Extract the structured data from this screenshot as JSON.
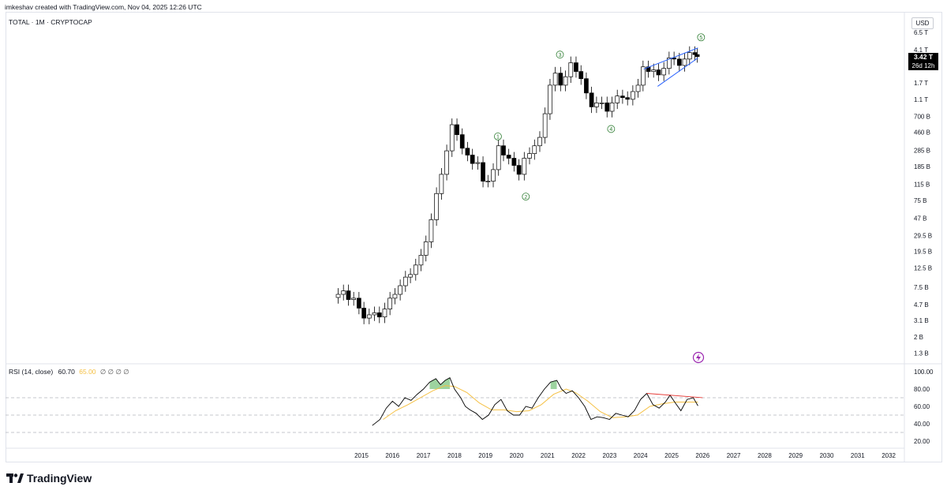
{
  "header": {
    "attribution": "imkeshav created with TradingView.com, Nov 04, 2025 12:26 UTC"
  },
  "symbol_label": "TOTAL · 1M · CRYPTOCAP",
  "currency": "USD",
  "last_price": {
    "value": "3.42 T",
    "countdown": "26d 12h"
  },
  "rsi_legend": {
    "name": "RSI (14, close)",
    "value": "60.70",
    "ma_value": "65.00",
    "extras": "∅ ∅ ∅ ∅"
  },
  "brand": {
    "name": "TradingView"
  },
  "chart_data": [
    {
      "type": "candlestick",
      "title": "TOTAL · 1M · CRYPTOCAP",
      "y_scale": "log",
      "y_tick_labels": [
        "6.5T",
        "4.1T",
        "2.7T",
        "1.7T",
        "1.1T",
        "700B",
        "460B",
        "285B",
        "185B",
        "115B",
        "75B",
        "47B",
        "29.5B",
        "19.5B",
        "12.5B",
        "7.5B",
        "4.7B",
        "3.1B",
        "2B",
        "1.3B"
      ],
      "y_tick_values": [
        6500000000000.0,
        4100000000000.0,
        2700000000000.0,
        1700000000000.0,
        1100000000000.0,
        700000000000.0,
        460000000000.0,
        285000000000.0,
        185000000000.0,
        115000000000.0,
        75000000000.0,
        47000000000.0,
        29500000000.0,
        19500000000.0,
        12500000000.0,
        7500000000.0,
        4700000000.0,
        3100000000.0,
        2000000000.0,
        1300000000.0
      ],
      "y_tick_display": [
        "6.5 T",
        "4.1 T",
        "2.7 T",
        "1.7 T",
        "1.1 T",
        "700 B",
        "460 B",
        "285 B",
        "185 B",
        "115 B",
        "75 B",
        "47 B",
        "29.5 B",
        "19.5 B",
        "12.5 B",
        "7.5 B",
        "4.7 B",
        "3.1 B",
        "2 B",
        "1.3 B"
      ],
      "x_tick_labels": [
        "2015",
        "2016",
        "2017",
        "2018",
        "2019",
        "2020",
        "2021",
        "2022",
        "2023",
        "2024",
        "2025",
        "2026",
        "2027",
        "2028",
        "2029",
        "2030",
        "2031",
        "2032"
      ],
      "colors": {
        "up": "#ffffff",
        "down": "#000000",
        "outline": "#000000",
        "wedge": "#2962ff",
        "wave_label": "#2e7d32"
      },
      "series_close_usd": [
        [
          2014.25,
          6200000000.0
        ],
        [
          2014.42,
          6800000000.0
        ],
        [
          2014.58,
          5400000000.0
        ],
        [
          2014.75,
          5600000000.0
        ],
        [
          2014.92,
          4300000000.0
        ],
        [
          2015.08,
          3300000000.0
        ],
        [
          2015.25,
          3600000000.0
        ],
        [
          2015.42,
          3800000000.0
        ],
        [
          2015.58,
          3400000000.0
        ],
        [
          2015.75,
          4200000000.0
        ],
        [
          2015.92,
          5600000000.0
        ],
        [
          2016.08,
          6200000000.0
        ],
        [
          2016.25,
          7800000000.0
        ],
        [
          2016.42,
          9800000000.0
        ],
        [
          2016.58,
          10500000000.0
        ],
        [
          2016.75,
          13500000000.0
        ],
        [
          2016.92,
          17500000000.0
        ],
        [
          2017.08,
          25000000000.0
        ],
        [
          2017.25,
          45000000000.0
        ],
        [
          2017.42,
          90000000000.0
        ],
        [
          2017.58,
          150000000000.0
        ],
        [
          2017.75,
          280000000000.0
        ],
        [
          2017.92,
          560000000000.0
        ],
        [
          2018.08,
          430000000000.0
        ],
        [
          2018.25,
          300000000000.0
        ],
        [
          2018.42,
          250000000000.0
        ],
        [
          2018.58,
          200000000000.0
        ],
        [
          2018.75,
          205000000000.0
        ],
        [
          2018.92,
          125000000000.0
        ],
        [
          2019.08,
          125000000000.0
        ],
        [
          2019.25,
          170000000000.0
        ],
        [
          2019.42,
          320000000000.0
        ],
        [
          2019.58,
          250000000000.0
        ],
        [
          2019.75,
          230000000000.0
        ],
        [
          2019.92,
          190000000000.0
        ],
        [
          2020.08,
          150000000000.0
        ],
        [
          2020.25,
          230000000000.0
        ],
        [
          2020.42,
          260000000000.0
        ],
        [
          2020.58,
          320000000000.0
        ],
        [
          2020.75,
          400000000000.0
        ],
        [
          2020.92,
          750000000000.0
        ],
        [
          2021.08,
          1600000000000.0
        ],
        [
          2021.25,
          2200000000000.0
        ],
        [
          2021.42,
          1600000000000.0
        ],
        [
          2021.58,
          2000000000000.0
        ],
        [
          2021.75,
          2900000000000.0
        ],
        [
          2021.92,
          2300000000000.0
        ],
        [
          2022.08,
          1900000000000.0
        ],
        [
          2022.25,
          1300000000000.0
        ],
        [
          2022.42,
          900000000000.0
        ],
        [
          2022.58,
          1000000000000.0
        ],
        [
          2022.75,
          1000000000000.0
        ],
        [
          2022.92,
          800000000000.0
        ],
        [
          2023.08,
          1000000000000.0
        ],
        [
          2023.25,
          1200000000000.0
        ],
        [
          2023.42,
          1150000000000.0
        ],
        [
          2023.58,
          1100000000000.0
        ],
        [
          2023.75,
          1350000000000.0
        ],
        [
          2023.92,
          1600000000000.0
        ],
        [
          2024.08,
          2600000000000.0
        ],
        [
          2024.25,
          2300000000000.0
        ],
        [
          2024.42,
          2400000000000.0
        ],
        [
          2024.58,
          2100000000000.0
        ],
        [
          2024.75,
          2500000000000.0
        ],
        [
          2024.92,
          3300000000000.0
        ],
        [
          2025.08,
          3200000000000.0
        ],
        [
          2025.25,
          2700000000000.0
        ],
        [
          2025.42,
          3200000000000.0
        ],
        [
          2025.58,
          3800000000000.0
        ],
        [
          2025.75,
          3600000000000.0
        ],
        [
          2025.83,
          3420000000000.0
        ]
      ],
      "elliott_waves": [
        {
          "label": "1",
          "x": 2019.4,
          "y": 410000000000.0
        },
        {
          "label": "2",
          "x": 2020.3,
          "y": 83000000000.0
        },
        {
          "label": "3",
          "x": 2021.4,
          "y": 3600000000000.0
        },
        {
          "label": "4",
          "x": 2023.05,
          "y": 500000000000.0
        },
        {
          "label": "5",
          "x": 2025.95,
          "y": 5700000000000.0
        }
      ]
    },
    {
      "type": "line",
      "title": "RSI (14, close)",
      "y_tick_labels": [
        "100.00",
        "80.00",
        "60.00",
        "40.00",
        "20.00"
      ],
      "y_tick_values": [
        100,
        80,
        60,
        40,
        20
      ],
      "ylim": [
        20,
        100
      ],
      "levels": [
        70,
        50,
        30
      ],
      "series": [
        {
          "name": "RSI (14, close)",
          "color": "#000000",
          "points": [
            [
              2015.35,
              38
            ],
            [
              2015.6,
              45
            ],
            [
              2015.8,
              58
            ],
            [
              2016.0,
              66
            ],
            [
              2016.2,
              60
            ],
            [
              2016.4,
              70
            ],
            [
              2016.6,
              67
            ],
            [
              2016.8,
              74
            ],
            [
              2017.0,
              80
            ],
            [
              2017.2,
              88
            ],
            [
              2017.4,
              92
            ],
            [
              2017.55,
              85
            ],
            [
              2017.7,
              90
            ],
            [
              2017.85,
              93
            ],
            [
              2018.0,
              80
            ],
            [
              2018.2,
              70
            ],
            [
              2018.35,
              60
            ],
            [
              2018.5,
              56
            ],
            [
              2018.7,
              52
            ],
            [
              2018.9,
              45
            ],
            [
              2019.1,
              50
            ],
            [
              2019.3,
              62
            ],
            [
              2019.5,
              68
            ],
            [
              2019.7,
              55
            ],
            [
              2019.9,
              50
            ],
            [
              2020.1,
              50
            ],
            [
              2020.3,
              60
            ],
            [
              2020.5,
              58
            ],
            [
              2020.7,
              70
            ],
            [
              2020.9,
              80
            ],
            [
              2021.1,
              88
            ],
            [
              2021.3,
              90
            ],
            [
              2021.45,
              80
            ],
            [
              2021.6,
              75
            ],
            [
              2021.8,
              78
            ],
            [
              2022.0,
              70
            ],
            [
              2022.2,
              60
            ],
            [
              2022.4,
              45
            ],
            [
              2022.6,
              48
            ],
            [
              2022.8,
              47
            ],
            [
              2023.0,
              45
            ],
            [
              2023.2,
              52
            ],
            [
              2023.4,
              50
            ],
            [
              2023.6,
              48
            ],
            [
              2023.8,
              55
            ],
            [
              2024.0,
              68
            ],
            [
              2024.2,
              75
            ],
            [
              2024.4,
              62
            ],
            [
              2024.6,
              58
            ],
            [
              2024.8,
              65
            ],
            [
              2024.95,
              73
            ],
            [
              2025.1,
              65
            ],
            [
              2025.3,
              55
            ],
            [
              2025.5,
              68
            ],
            [
              2025.7,
              70
            ],
            [
              2025.85,
              60.7
            ]
          ]
        },
        {
          "name": "RSI-based MA",
          "color": "#f5c043",
          "points": [
            [
              2015.7,
              45
            ],
            [
              2016.1,
              55
            ],
            [
              2016.5,
              62
            ],
            [
              2016.9,
              70
            ],
            [
              2017.3,
              78
            ],
            [
              2017.7,
              84
            ],
            [
              2018.0,
              83
            ],
            [
              2018.4,
              76
            ],
            [
              2018.8,
              64
            ],
            [
              2019.2,
              56
            ],
            [
              2019.6,
              56
            ],
            [
              2020.0,
              54
            ],
            [
              2020.4,
              55
            ],
            [
              2020.8,
              62
            ],
            [
              2021.2,
              74
            ],
            [
              2021.6,
              80
            ],
            [
              2021.9,
              76
            ],
            [
              2022.3,
              66
            ],
            [
              2022.7,
              54
            ],
            [
              2023.1,
              47
            ],
            [
              2023.5,
              48
            ],
            [
              2023.9,
              50
            ],
            [
              2024.3,
              60
            ],
            [
              2024.7,
              63
            ],
            [
              2025.1,
              65
            ],
            [
              2025.5,
              65
            ],
            [
              2025.85,
              65
            ]
          ]
        }
      ]
    }
  ]
}
